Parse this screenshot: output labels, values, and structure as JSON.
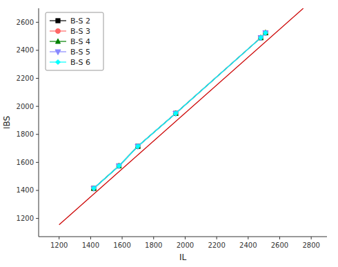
{
  "chart_data": {
    "type": "line",
    "xlabel": "IL",
    "ylabel": "IBS",
    "x": [
      1420,
      1580,
      1700,
      1940,
      2480,
      2510
    ],
    "series": [
      {
        "color": "#cc0000",
        "x": [
          1200,
          2750
        ],
        "values": [
          1155,
          2700
        ],
        "marker": "none",
        "line_style": "solid"
      },
      {
        "name": "B-S 2",
        "color": "black",
        "marker": "square",
        "line_style": "solid",
        "values": [
          1415,
          1575,
          1715,
          1950,
          2490,
          2525
        ]
      },
      {
        "name": "B-S 3",
        "color": "#ff6666",
        "marker": "circle",
        "line_style": "solid",
        "values": [
          1415,
          1575,
          1715,
          1950,
          2490,
          2525
        ]
      },
      {
        "name": "B-S 4",
        "color": "green",
        "marker": "triangle-up",
        "line_style": "solid",
        "values": [
          1415,
          1575,
          1715,
          1950,
          2490,
          2525
        ]
      },
      {
        "name": "B-S 5",
        "color": "#8888ff",
        "marker": "triangle-down",
        "line_style": "solid",
        "values": [
          1415,
          1575,
          1715,
          1950,
          2490,
          2525
        ]
      },
      {
        "name": "B-S 6",
        "color": "cyan",
        "marker": "diamond",
        "line_style": "solid",
        "values": [
          1415,
          1575,
          1715,
          1950,
          2490,
          2525
        ]
      }
    ],
    "xlim": [
      1070,
      2900
    ],
    "ylim": [
      1070,
      2700
    ],
    "xticks": [
      1200,
      1400,
      1600,
      1800,
      2000,
      2200,
      2400,
      2600,
      2800
    ],
    "yticks": [
      1200,
      1400,
      1600,
      1800,
      2000,
      2200,
      2400,
      2600
    ],
    "grid": false,
    "legend": "upper left"
  }
}
